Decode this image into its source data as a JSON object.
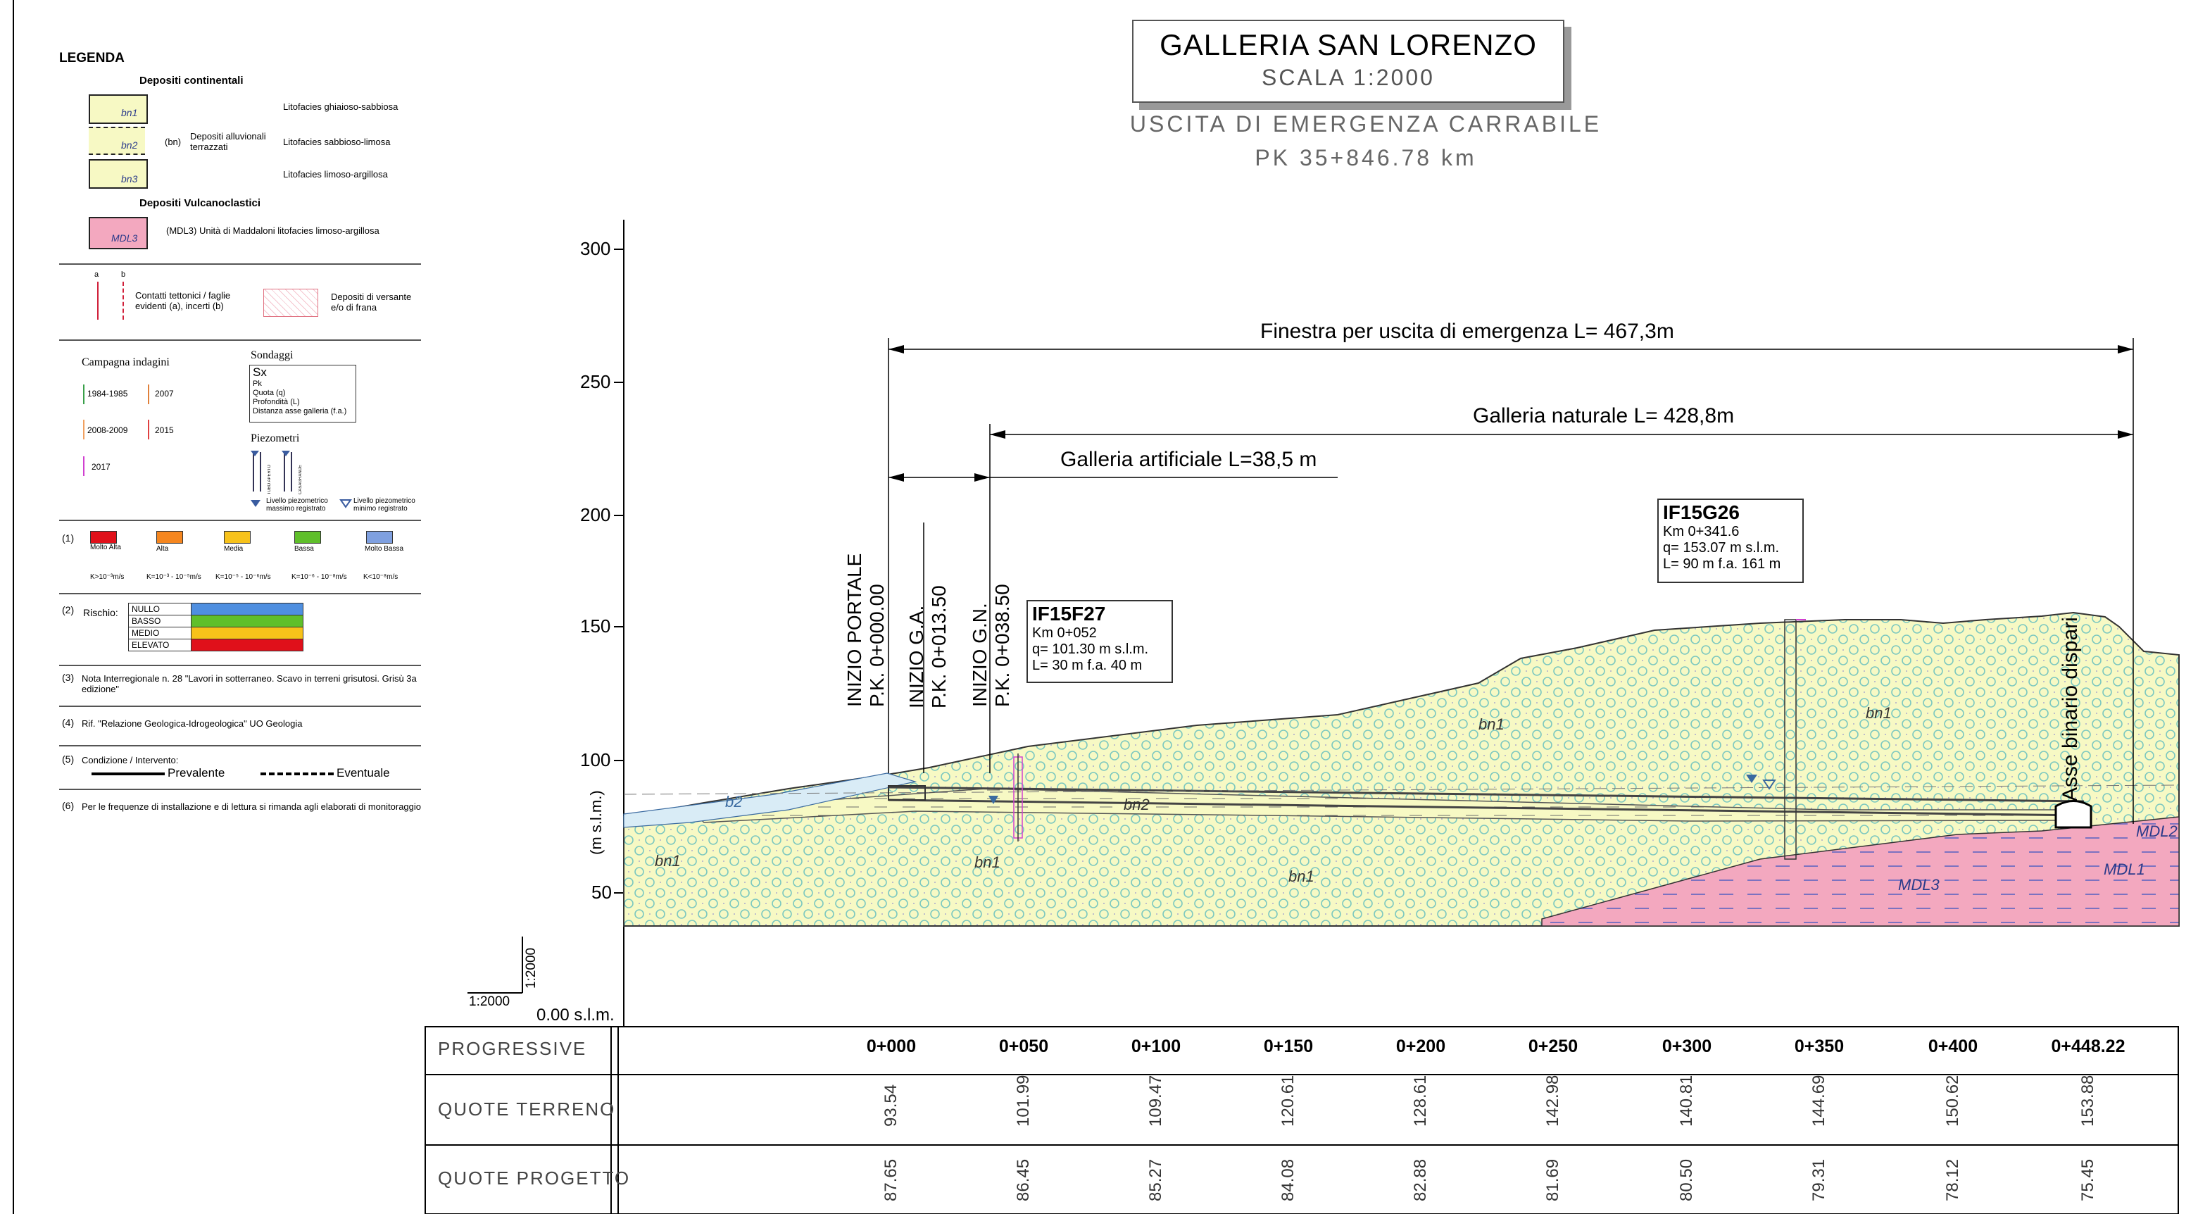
{
  "title": {
    "main": "GALLERIA SAN LORENZO",
    "scale": "SCALA 1:2000",
    "subtitle1": "USCITA DI EMERGENZA CARRABILE",
    "subtitle2": "PK 35+846.78 km"
  },
  "legend": {
    "title": "LEGENDA",
    "continental_header": "Depositi continentali",
    "bn_units": [
      "bn1",
      "bn2",
      "bn3"
    ],
    "bn_group": "(bn)",
    "bn_desc": "Depositi alluvionali terrazzati",
    "litofacies": [
      "Litofacies ghiaioso-sabbiosa",
      "Litofacies sabbioso-limosa",
      "Litofacies limoso-argillosa"
    ],
    "volcanic_header": "Depositi Vulcanoclastici",
    "mdl3_label": "MDL3",
    "mdl3_desc": "(MDL3) Unità di Maddaloni litofacies limoso-argillosa",
    "contact_a": "a",
    "contact_b": "b",
    "contacts_desc": "Contatti tettonici / faglie evidenti (a), incerti (b)",
    "versante_desc": "Depositi di versante e/o di frana",
    "campaign_title": "Campagna indagini",
    "campaigns": [
      "1984-1985",
      "2007",
      "2008-2009",
      "2015",
      "2017"
    ],
    "sondaggi_title": "Sondaggi",
    "sondaggi_box": [
      "Sx",
      "Pk",
      "Quota (q)",
      "Profondità (L)",
      "Distanza asse galleria (f.a.)"
    ],
    "piezometri_title": "Piezometri",
    "piezo_small": [
      "TUBO APERTO",
      "CASAGRANDE"
    ],
    "piezo_max": "Livello piezometrico massimo registrato",
    "piezo_min": "Livello piezometrico minimo registrato",
    "perm_idx": "(1)",
    "permeability": [
      {
        "label": "Molto Alta",
        "color": "#e0101a",
        "k": "K>10⁻³m/s"
      },
      {
        "label": "Alta",
        "color": "#f5861f",
        "k": "K=10⁻³ - 10⁻⁵m/s"
      },
      {
        "label": "Media",
        "color": "#f7c21a",
        "k": "K=10⁻⁵ - 10⁻⁶m/s"
      },
      {
        "label": "Bassa",
        "color": "#5fbf2a",
        "k": "K=10⁻⁶ - 10⁻⁸m/s"
      },
      {
        "label": "Molto Bassa",
        "color": "#7fa0e0",
        "k": "K<10⁻⁸m/s"
      }
    ],
    "risk_idx": "(2)",
    "risk_label": "Rischio:",
    "risk": [
      {
        "label": "NULLO",
        "color": "#4f8fe0"
      },
      {
        "label": "BASSO",
        "color": "#5fbf2a"
      },
      {
        "label": "MEDIO",
        "color": "#f7c21a"
      },
      {
        "label": "ELEVATO",
        "color": "#e0101a"
      }
    ],
    "note3_idx": "(3)",
    "note3": "Nota Interregionale n. 28 \"Lavori in sotterraneo. Scavo in terreni grisutosi. Grisù 3a edizione\"",
    "note4_idx": "(4)",
    "note4": "Rif. \"Relazione Geologica-Idrogeologica\" UO Geologia",
    "note5_idx": "(5)",
    "note5": "Condizione / Intervento:",
    "prevalente": "Prevalente",
    "eventuale": "Eventuale",
    "note6_idx": "(6)",
    "note6": "Per le frequenze di installazione e di lettura si rimanda agli elaborati di monitoraggio"
  },
  "profile": {
    "y_axis_label": "(m s.l.m.)",
    "y_ticks": [
      300,
      250,
      200,
      150,
      100,
      50
    ],
    "datum": "0.00 s.l.m.",
    "scale_h": "1:2000",
    "scale_v": "1:2000",
    "dim_total": "Finestra per uscita di emergenza L= 467,3m",
    "dim_natural": "Galleria naturale L= 428,8m",
    "dim_artificial": "Galleria artificiale L=38,5 m",
    "markers": [
      {
        "line1": "INIZIO PORTALE",
        "line2": "P.K. 0+000.00"
      },
      {
        "line1": "INIZIO G.A.",
        "line2": "P.K. 0+013.50"
      },
      {
        "line1": "INIZIO G.N.",
        "line2": "P.K. 0+038.50"
      }
    ],
    "asse": "Asse binario dispari",
    "boreholes": [
      {
        "id": "IF15F27",
        "km": "Km 0+052",
        "q": "q= 101.30 m s.l.m.",
        "l": "L= 30 m f.a. 40 m"
      },
      {
        "id": "IF15G26",
        "km": "Km 0+341.6",
        "q": "q= 153.07 m s.l.m.",
        "l": "L= 90 m f.a. 161 m"
      }
    ],
    "unit_labels": [
      "bn1",
      "bn1",
      "bn1",
      "bn1",
      "bn1",
      "bn2",
      "b2",
      "MDL3",
      "MDL2",
      "MDL1"
    ],
    "colors": {
      "bn": "#f7f9c4",
      "circle": "#7cc8c0",
      "mdl": "#f3a8bf",
      "mdl_dash": "#5560c0"
    }
  },
  "table": {
    "row_labels": [
      "PROGRESSIVE",
      "QUOTE TERRENO",
      "QUOTE PROGETTO"
    ],
    "progressive": [
      "0+000",
      "0+050",
      "0+100",
      "0+150",
      "0+200",
      "0+250",
      "0+300",
      "0+350",
      "0+400",
      "0+448.22"
    ],
    "quote_terreno": [
      "93.54",
      "101.99",
      "109.47",
      "120.61",
      "128.61",
      "142.98",
      "140.81",
      "144.69",
      "150.62",
      "153.88"
    ],
    "quote_progetto": [
      "87.65",
      "86.45",
      "85.27",
      "84.08",
      "82.88",
      "81.69",
      "80.50",
      "79.31",
      "78.12",
      "75.45"
    ]
  }
}
